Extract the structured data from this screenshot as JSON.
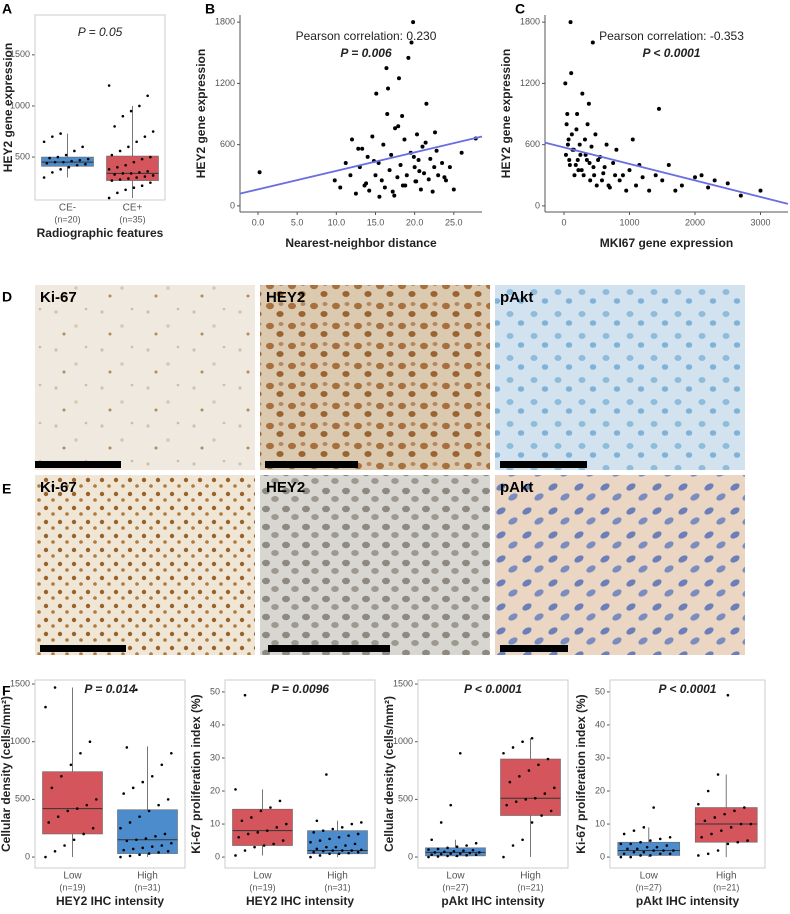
{
  "panel_labels": [
    "A",
    "B",
    "C",
    "D",
    "E",
    "F"
  ],
  "micrographs": {
    "rows": [
      [
        "Ki-67",
        "HEY2",
        "pAkt"
      ],
      [
        "Ki-67",
        "HEY2",
        "pAkt"
      ]
    ]
  },
  "chart_data": [
    {
      "type": "box",
      "title": "P = 0.05",
      "ylabel": "HEY2 gene expression",
      "xlabel": "Radiographic features",
      "categories": [
        "CE-",
        "CE+"
      ],
      "n_labels": [
        "(n=20)",
        "(n=35)"
      ],
      "ylim": [
        80,
        1890
      ],
      "yticks": [
        500,
        1000,
        1500
      ],
      "boxes": [
        {
          "color": "#4d8ccc",
          "whislo": 300,
          "q1": 410,
          "med": 450,
          "q3": 500,
          "whishi": 730,
          "points": [
            300,
            350,
            380,
            400,
            420,
            430,
            440,
            450,
            450,
            460,
            470,
            480,
            490,
            500,
            520,
            560,
            600,
            650,
            700,
            730
          ]
        },
        {
          "color": "#d4565c",
          "whislo": 100,
          "q1": 270,
          "med": 340,
          "q3": 510,
          "whishi": 1000,
          "points": [
            100,
            150,
            180,
            200,
            220,
            250,
            270,
            280,
            290,
            300,
            310,
            320,
            330,
            340,
            340,
            350,
            360,
            380,
            400,
            420,
            450,
            480,
            500,
            520,
            560,
            600,
            650,
            700,
            750,
            800,
            900,
            950,
            1000,
            1100,
            1200
          ]
        }
      ]
    },
    {
      "type": "scatter",
      "ylabel": "HEY2 gene expression",
      "xlabel": "Nearest-neighbor distance",
      "annotations": [
        "Pearson correlation: 0.230",
        "P = 0.006"
      ],
      "xlim": [
        -2.3,
        28.6
      ],
      "ylim": [
        -60,
        1870
      ],
      "xticks": [
        {
          "value": 0,
          "label": "0.0"
        },
        {
          "value": 5,
          "label": "5.0"
        },
        {
          "value": 10,
          "label": "10.0"
        },
        {
          "value": 15,
          "label": "15.0"
        },
        {
          "value": 20,
          "label": "20.0"
        },
        {
          "value": 25,
          "label": "25.0"
        }
      ],
      "yticks": [
        0,
        600,
        1200,
        1800
      ],
      "color": "#000000",
      "x": [
        0.2,
        9.8,
        10.5,
        11.2,
        11.8,
        12.0,
        12.5,
        13.0,
        13.3,
        13.8,
        14.0,
        14.2,
        14.6,
        15.0,
        15.1,
        15.4,
        15.8,
        16.0,
        16.2,
        16.5,
        16.8,
        17.0,
        17.2,
        17.5,
        17.8,
        18.0,
        18.2,
        18.5,
        18.7,
        19.0,
        19.2,
        19.5,
        19.8,
        20.0,
        20.1,
        20.3,
        20.5,
        20.8,
        21.0,
        21.2,
        21.5,
        21.8,
        22.0,
        22.3,
        22.5,
        22.8,
        23.0,
        23.5,
        24.0,
        24.5,
        25.0,
        26.0,
        27.8,
        15.5,
        16.6,
        17.9,
        18.8,
        19.6,
        20.6,
        21.4,
        14.8,
        13.6,
        12.8,
        22.6,
        23.8,
        18.4,
        17.4,
        16.4,
        19.9,
        20.2
      ],
      "values": [
        330,
        250,
        180,
        420,
        300,
        650,
        120,
        380,
        560,
        220,
        480,
        150,
        680,
        300,
        1100,
        420,
        250,
        600,
        180,
        900,
        350,
        500,
        140,
        760,
        280,
        1250,
        400,
        200,
        650,
        300,
        1450,
        520,
        1800,
        380,
        240,
        700,
        450,
        160,
        580,
        320,
        1000,
        260,
        460,
        140,
        380,
        540,
        300,
        420,
        250,
        380,
        160,
        520,
        660,
        90,
        1150,
        780,
        200,
        1600,
        340,
        620,
        440,
        200,
        560,
        720,
        280,
        880,
        100,
        1350,
        480,
        240
      ],
      "fit": {
        "color": "#6a6ee0",
        "x": [
          -2.3,
          28.6
        ],
        "values": [
          120,
          680
        ]
      }
    },
    {
      "type": "scatter",
      "ylabel": "HEY2 gene expression",
      "xlabel": "MKI67 gene expression",
      "annotations": [
        "Pearson correlation: -0.353",
        "P < 0.0001"
      ],
      "xlim": [
        -290,
        3420
      ],
      "ylim": [
        -60,
        1870
      ],
      "xticks": [
        0,
        1000,
        2000,
        3000
      ],
      "yticks": [
        0,
        600,
        1200,
        1800
      ],
      "color": "#000000",
      "x": [
        20,
        40,
        60,
        80,
        100,
        120,
        150,
        180,
        200,
        220,
        250,
        280,
        300,
        320,
        350,
        380,
        400,
        420,
        450,
        480,
        500,
        550,
        600,
        650,
        700,
        750,
        800,
        850,
        900,
        1000,
        1050,
        1100,
        1200,
        1300,
        1400,
        1450,
        1500,
        1600,
        1700,
        1800,
        2000,
        2100,
        2200,
        2300,
        2500,
        2700,
        3000,
        30,
        50,
        70,
        90,
        110,
        130,
        160,
        190,
        210,
        240,
        270,
        330,
        360,
        390,
        440,
        460,
        520,
        580,
        620,
        680,
        780,
        950,
        1150
      ],
      "values": [
        1200,
        800,
        600,
        450,
        1800,
        700,
        550,
        400,
        900,
        350,
        500,
        1100,
        300,
        650,
        450,
        1000,
        250,
        580,
        380,
        700,
        200,
        480,
        320,
        600,
        180,
        420,
        550,
        250,
        300,
        350,
        650,
        200,
        280,
        150,
        300,
        950,
        250,
        400,
        150,
        200,
        280,
        300,
        180,
        250,
        220,
        100,
        150,
        500,
        900,
        650,
        400,
        1300,
        550,
        300,
        750,
        450,
        600,
        350,
        500,
        800,
        420,
        1600,
        300,
        450,
        250,
        380,
        200,
        300,
        150,
        400
      ],
      "fit": {
        "color": "#6a6ee0",
        "x": [
          -290,
          3420
        ],
        "values": [
          620,
          20
        ]
      }
    },
    {
      "type": "box",
      "title": "P = 0.014",
      "ylabel": "Cellular density (cells/mm²)",
      "xlabel": "HEY2 IHC intensity",
      "categories": [
        "Low",
        "High"
      ],
      "n_labels": [
        "(n=19)",
        "(n=31)"
      ],
      "ylim": [
        -95,
        1535
      ],
      "yticks": [
        0,
        500,
        1000,
        1500
      ],
      "boxes": [
        {
          "color": "#d4565c",
          "whislo": 0,
          "q1": 200,
          "med": 420,
          "q3": 740,
          "whishi": 1470,
          "points": [
            0,
            50,
            100,
            150,
            200,
            250,
            300,
            350,
            400,
            420,
            450,
            500,
            600,
            700,
            800,
            900,
            1000,
            1300,
            1470
          ]
        },
        {
          "color": "#4d8ccc",
          "whislo": 0,
          "q1": 30,
          "med": 150,
          "q3": 410,
          "whishi": 960,
          "points": [
            0,
            10,
            20,
            30,
            40,
            50,
            60,
            70,
            80,
            90,
            100,
            120,
            140,
            150,
            160,
            180,
            200,
            250,
            300,
            350,
            400,
            450,
            500,
            550,
            600,
            650,
            700,
            800,
            900,
            950,
            1450
          ]
        }
      ]
    },
    {
      "type": "box",
      "title": "P = 0.0096",
      "ylabel": "Ki-67 proliferation index (%)",
      "xlabel": "HEY2 IHC intensity",
      "categories": [
        "Low",
        "High"
      ],
      "n_labels": [
        "(n=19)",
        "(n=31)"
      ],
      "ylim": [
        -3.3,
        53.6
      ],
      "yticks": [
        0,
        10,
        20,
        30,
        40,
        50
      ],
      "boxes": [
        {
          "color": "#d4565c",
          "whislo": 0.5,
          "q1": 3.5,
          "med": 8,
          "q3": 14.5,
          "whishi": 20.5,
          "points": [
            0.5,
            2,
            3,
            3.5,
            4,
            5,
            6,
            7,
            7.5,
            8,
            9,
            10,
            11,
            12,
            14,
            15,
            17,
            20.5,
            49
          ]
        },
        {
          "color": "#4d8ccc",
          "whislo": 0,
          "q1": 1,
          "med": 2,
          "q3": 8,
          "whishi": 11,
          "points": [
            0,
            0.5,
            1,
            1,
            1.2,
            1.5,
            1.5,
            1.8,
            2,
            2,
            2,
            2.2,
            2.5,
            3,
            3,
            3.5,
            4,
            4.5,
            5,
            5.5,
            6,
            6.5,
            7,
            7.5,
            8,
            8.5,
            9,
            10,
            10.5,
            11,
            25
          ]
        }
      ]
    },
    {
      "type": "box",
      "title": "P < 0.0001",
      "ylabel": "Cellular density (cells/mm²)",
      "xlabel": "pAkt IHC intensity",
      "categories": [
        "Low",
        "High"
      ],
      "n_labels": [
        "(n=27)",
        "(n=21)"
      ],
      "ylim": [
        -95,
        1535
      ],
      "yticks": [
        0,
        500,
        1000,
        1500
      ],
      "boxes": [
        {
          "color": "#4d8ccc",
          "whislo": 0,
          "q1": 10,
          "med": 40,
          "q3": 80,
          "whishi": 150,
          "points": [
            0,
            5,
            10,
            10,
            15,
            20,
            20,
            25,
            30,
            30,
            35,
            40,
            40,
            45,
            50,
            55,
            60,
            65,
            70,
            80,
            90,
            100,
            120,
            150,
            300,
            450,
            900
          ]
        },
        {
          "color": "#d4565c",
          "whislo": 0,
          "q1": 360,
          "med": 510,
          "q3": 850,
          "whishi": 1030,
          "points": [
            0,
            100,
            150,
            300,
            360,
            400,
            450,
            480,
            500,
            510,
            550,
            600,
            650,
            700,
            750,
            800,
            850,
            900,
            950,
            1000,
            1030
          ]
        }
      ]
    },
    {
      "type": "box",
      "title": "P < 0.0001",
      "ylabel": "Ki-67 proliferation index (%)",
      "xlabel": "pAkt IHC intensity",
      "categories": [
        "Low",
        "High"
      ],
      "n_labels": [
        "(n=27)",
        "(n=21)"
      ],
      "ylim": [
        -3.3,
        53.6
      ],
      "yticks": [
        0,
        10,
        20,
        30,
        40,
        50
      ],
      "boxes": [
        {
          "color": "#4d8ccc",
          "whislo": 0,
          "q1": 0.5,
          "med": 2,
          "q3": 4.5,
          "whishi": 9,
          "points": [
            0,
            0,
            0.5,
            0.5,
            1,
            1,
            1,
            1.5,
            1.5,
            2,
            2,
            2,
            2.5,
            2.5,
            3,
            3,
            3.5,
            4,
            4,
            4.5,
            5,
            5.5,
            6,
            7,
            8,
            9,
            15
          ]
        },
        {
          "color": "#d4565c",
          "whislo": 0,
          "q1": 4.5,
          "med": 10,
          "q3": 15,
          "whishi": 25,
          "points": [
            0.5,
            1,
            2,
            4,
            4.5,
            5,
            6,
            7,
            8,
            9,
            10,
            10,
            11,
            12,
            13,
            14,
            15,
            16,
            20,
            25,
            49
          ]
        }
      ]
    }
  ]
}
